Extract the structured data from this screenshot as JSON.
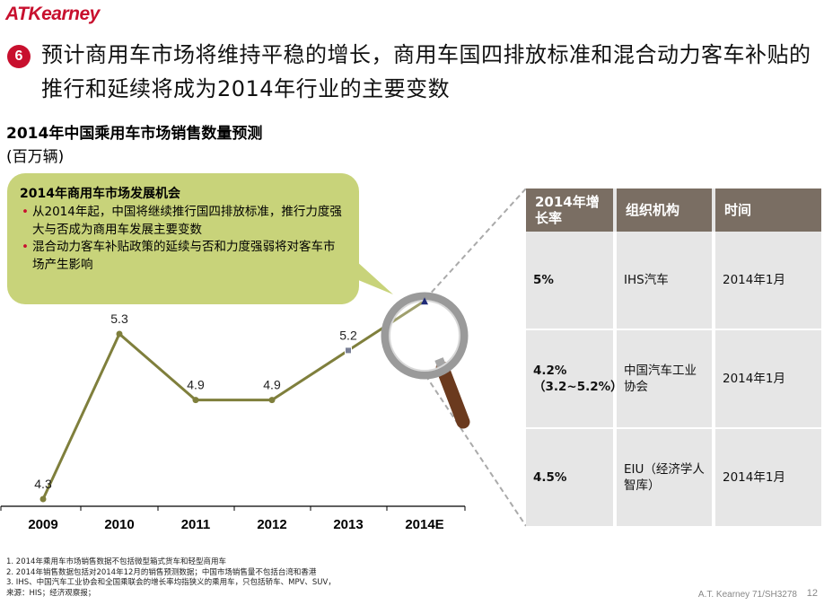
{
  "header": {
    "logo": "ATKearney",
    "section_number": "6",
    "title": "预计商用车市场将维持平稳的增长，商用车国四排放标准和混合动力客车补贴的推行和延续将成为2014年行业的主要变数"
  },
  "callout": {
    "heading": "2014年商用车市场发展机会",
    "bullets": [
      "从2014年起，中国将继续推行国四排放标准，推行力度强大与否成为商用车发展主要变数",
      "混合动力客车补贴政策的延续与否和力度强弱将对客车市场产生影响"
    ]
  },
  "chart_data": {
    "type": "line",
    "title": "2014年中国乘用车市场销售数量预测",
    "unit": "(百万辆)",
    "categories": [
      "2009",
      "2010",
      "2011",
      "2012",
      "2013",
      "2014E"
    ],
    "values": [
      4.3,
      5.3,
      4.9,
      4.9,
      5.2,
      5.5
    ],
    "data_labels": [
      "4.3",
      "5.3",
      "4.9",
      "4.9",
      "5.2",
      ""
    ],
    "colors": {
      "line": "#7f7f3c",
      "axis": "#000000"
    }
  },
  "table": {
    "headers": [
      "2014年增长率",
      "组织机构",
      "时间"
    ],
    "rows": [
      {
        "rate": "5%",
        "org": "IHS汽车",
        "time": "2014年1月"
      },
      {
        "rate": "4.2%",
        "rate_sub": "（3.2~5.2%）",
        "org": "中国汽车工业协会",
        "time": "2014年1月"
      },
      {
        "rate": "4.5%",
        "org": "EIU（经济学人智库）",
        "time": "2014年1月"
      }
    ]
  },
  "footnotes": [
    "1. 2014年乘用车市场销售数据不包括微型箱式货车和轻型商用车",
    "2. 2014年销售数据包括对2014年12月的销售预测数据；中国市场销售量不包括台湾和香港",
    "3. IHS、中国汽车工业协会和全国乘联会的增长率均指狭义的乘用车，只包括轿车、MPV、SUV，",
    "来源：HIS；经济观察报；"
  ],
  "footer": {
    "source_code": "A.T. Kearney 71/SH3278",
    "page": "12"
  }
}
